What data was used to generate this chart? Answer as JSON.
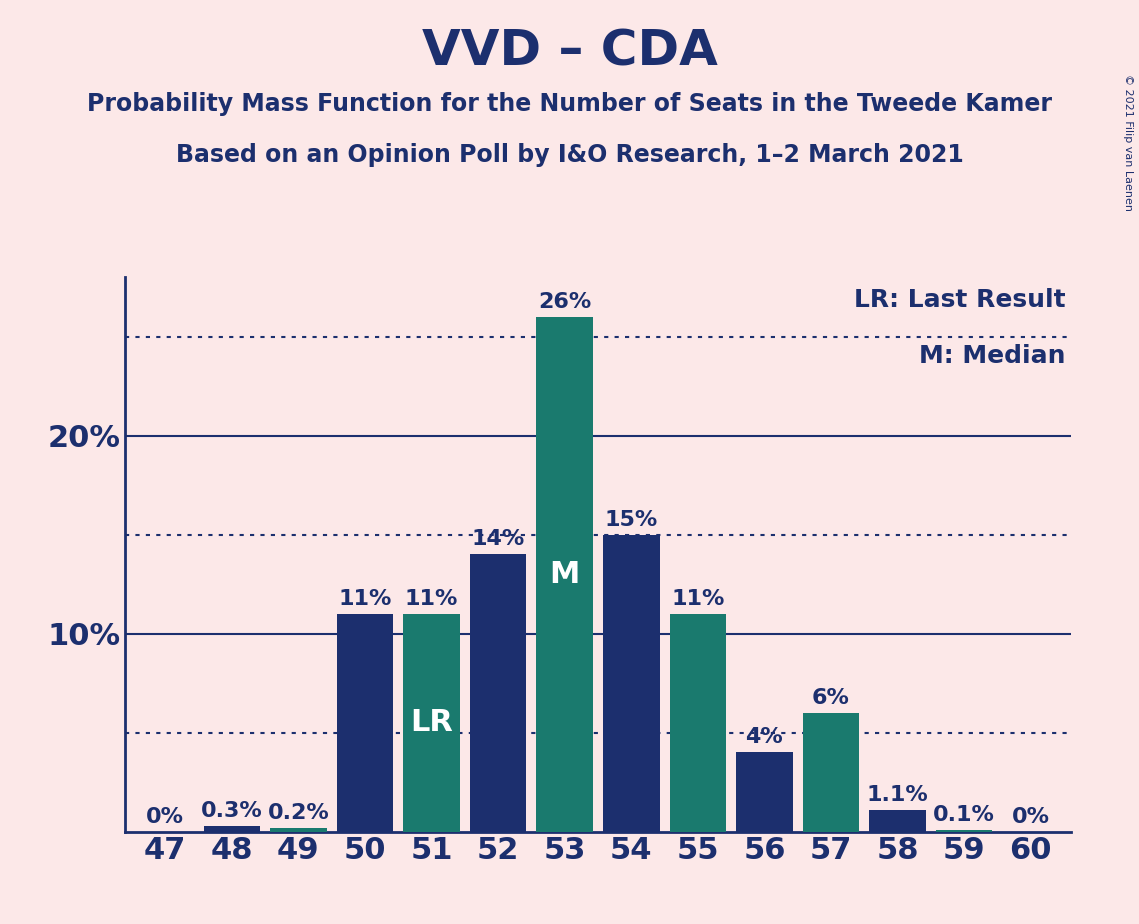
{
  "title": "VVD – CDA",
  "subtitle1": "Probability Mass Function for the Number of Seats in the Tweede Kamer",
  "subtitle2": "Based on an Opinion Poll by I&O Research, 1–2 March 2021",
  "copyright": "© 2021 Filip van Laenen",
  "categories": [
    47,
    48,
    49,
    50,
    51,
    52,
    53,
    54,
    55,
    56,
    57,
    58,
    59,
    60
  ],
  "values": [
    0.0,
    0.3,
    0.2,
    11.0,
    11.0,
    14.0,
    26.0,
    15.0,
    11.0,
    4.0,
    6.0,
    1.1,
    0.1,
    0.0
  ],
  "bar_colors": [
    "#1c2f6e",
    "#1c2f6e",
    "#1a7a6e",
    "#1c2f6e",
    "#1a7a6e",
    "#1c2f6e",
    "#1a7a6e",
    "#1c2f6e",
    "#1a7a6e",
    "#1c2f6e",
    "#1a7a6e",
    "#1c2f6e",
    "#1a7a6e",
    "#1c2f6e"
  ],
  "labels": [
    "0%",
    "0.3%",
    "0.2%",
    "11%",
    "11%",
    "14%",
    "26%",
    "15%",
    "11%",
    "4%",
    "6%",
    "1.1%",
    "0.1%",
    "0%"
  ],
  "bar_labels": [
    "",
    "",
    "",
    "",
    "LR",
    "",
    "M",
    "",
    "",
    "",
    "",
    "",
    "",
    ""
  ],
  "ylim": [
    0,
    28
  ],
  "yticks": [
    10,
    20
  ],
  "ytick_labels": [
    "10%",
    "20%"
  ],
  "solid_lines": [
    10,
    20
  ],
  "dotted_lines": [
    5,
    15,
    25
  ],
  "background_color": "#fce8e8",
  "bar_color_dark": "#1c2f6e",
  "bar_color_teal": "#1a7a6e",
  "legend_lr": "LR: Last Result",
  "legend_m": "M: Median",
  "title_fontsize": 36,
  "subtitle_fontsize": 17,
  "axis_tick_fontsize": 22,
  "bar_label_fontsize": 16,
  "bar_inner_label_fontsize": 22,
  "legend_fontsize": 18,
  "copyright_fontsize": 8
}
